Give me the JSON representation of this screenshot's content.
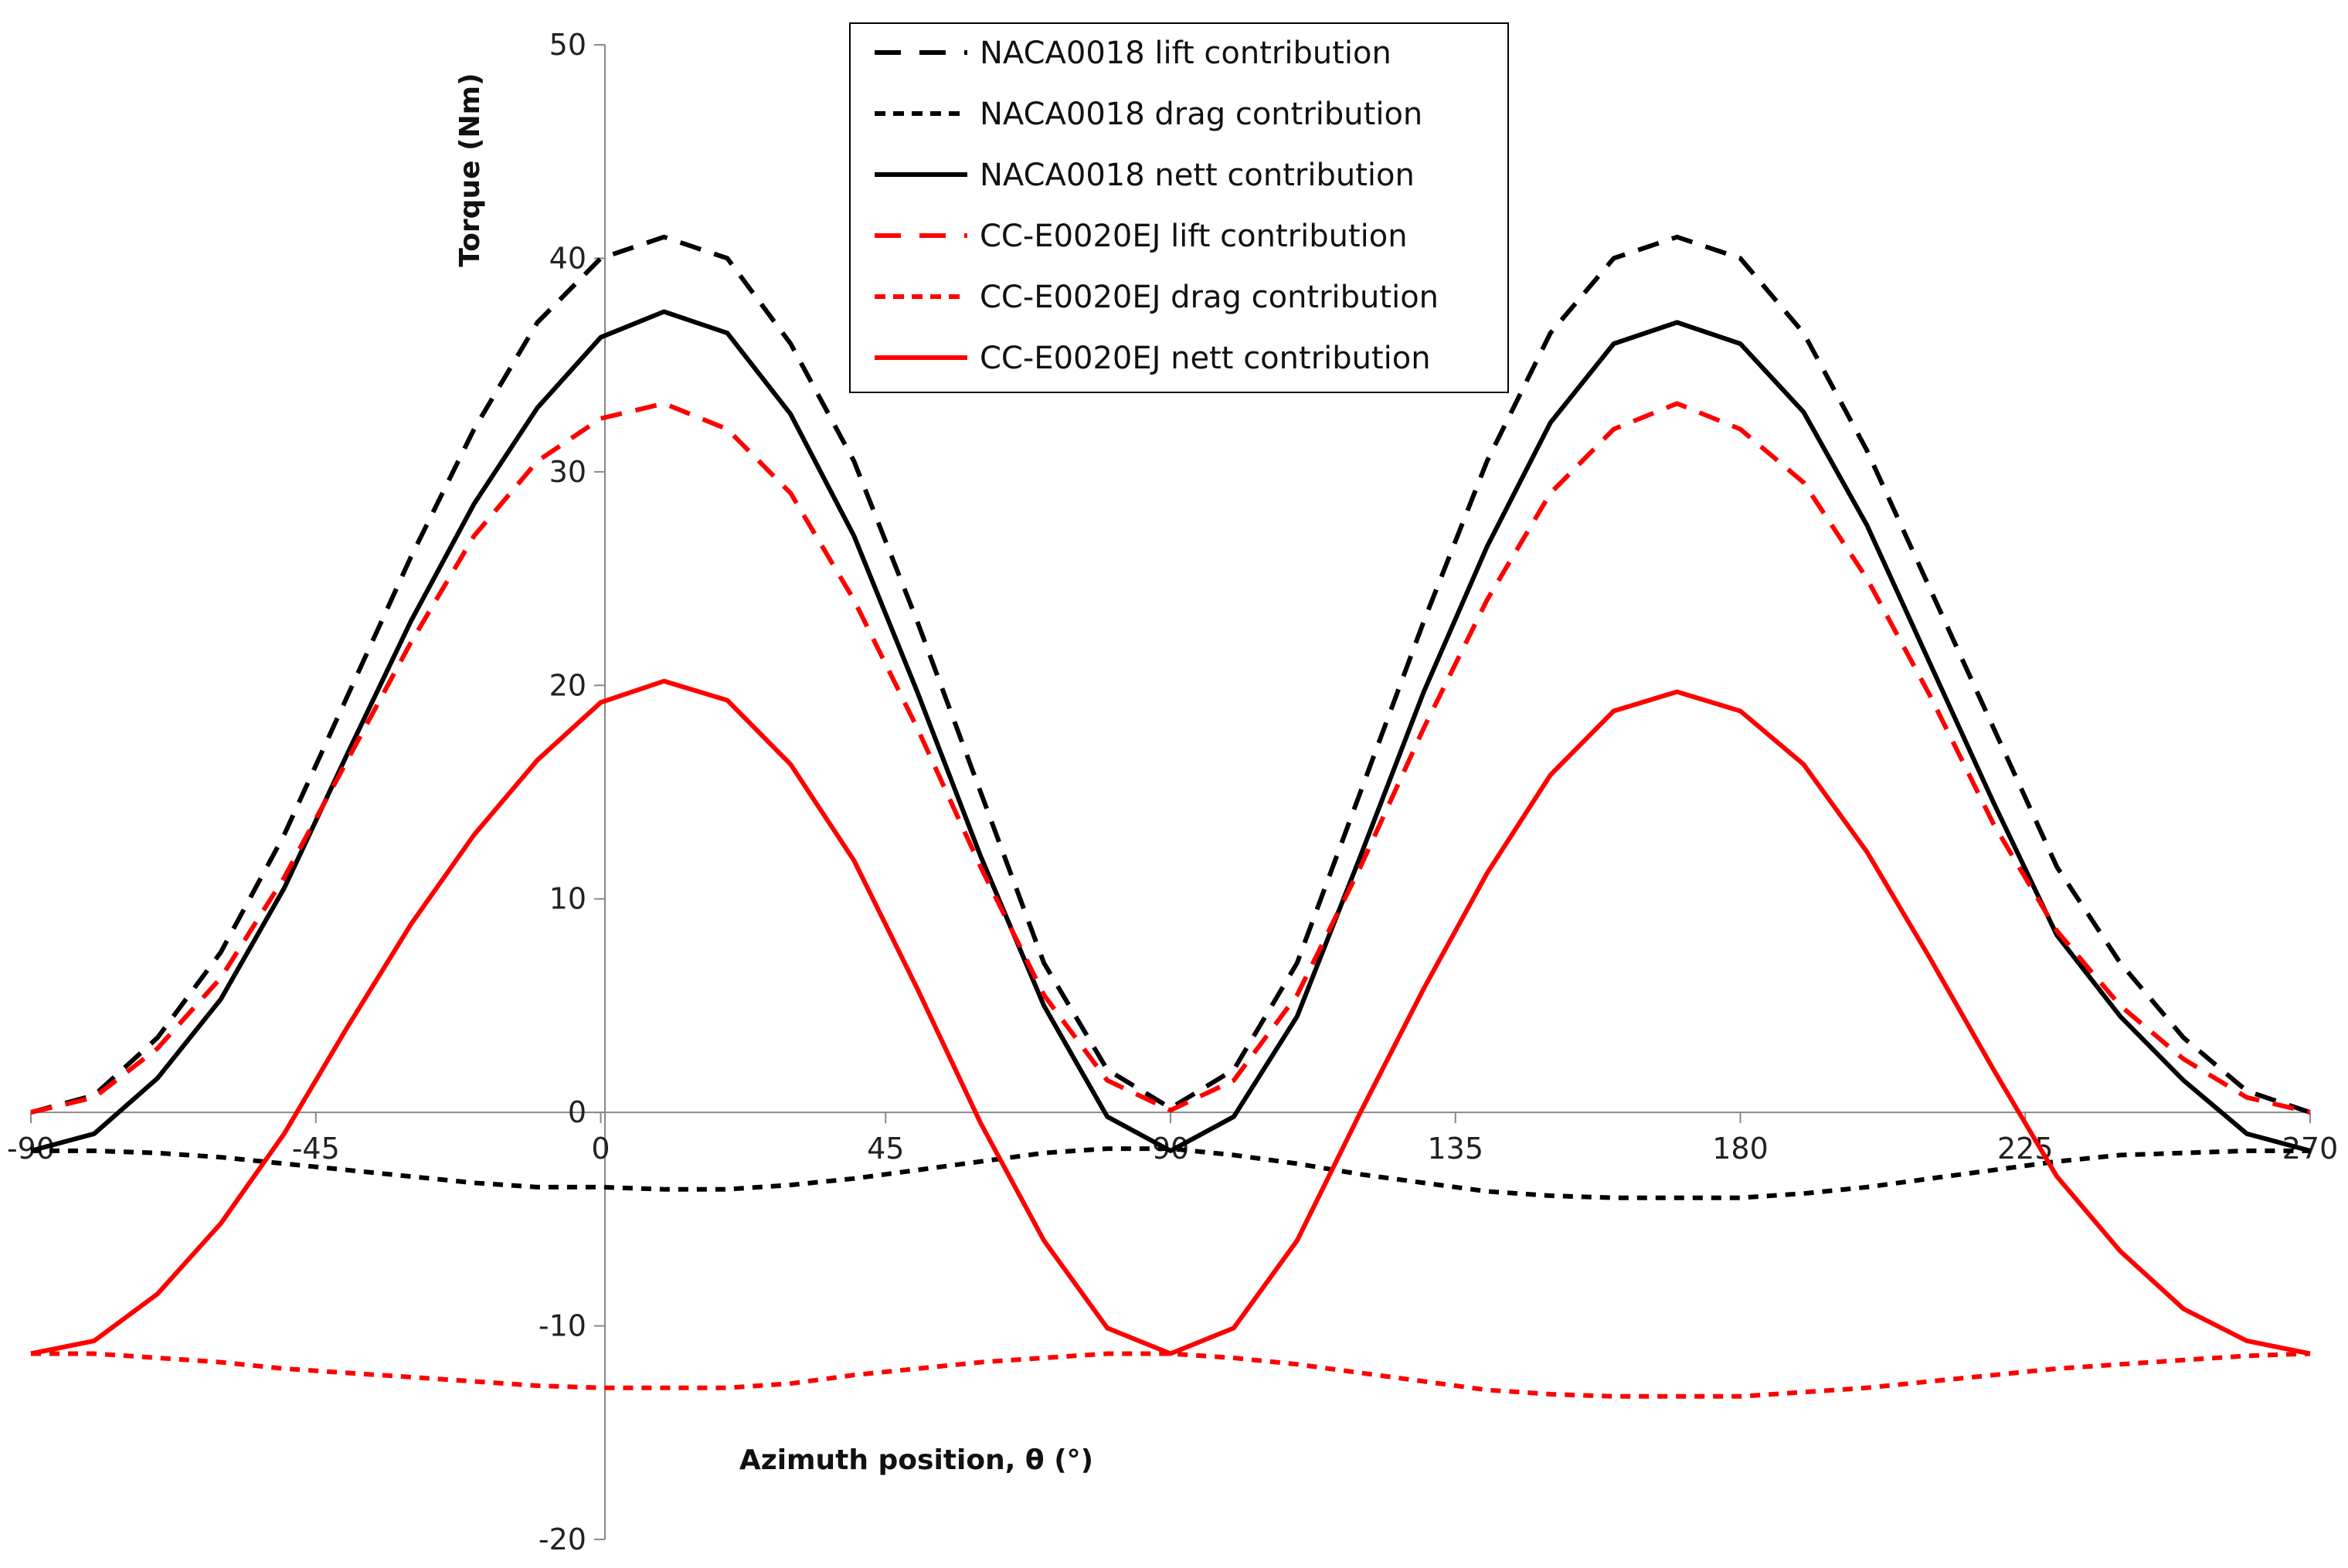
{
  "chart_data": {
    "type": "line",
    "title": "",
    "xlabel": "Azimuth position, θ (°)",
    "ylabel": "Torque (Nm)",
    "xlim": [
      -90,
      270
    ],
    "ylim": [
      -20,
      50
    ],
    "xticks": [
      -90,
      -45,
      0,
      45,
      90,
      135,
      180,
      225,
      270
    ],
    "yticks": [
      -20,
      -10,
      0,
      10,
      20,
      30,
      40,
      50
    ],
    "xtick_labels": [
      "-90",
      "-45",
      "0",
      "45",
      "90",
      "135",
      "180",
      "225",
      "270"
    ],
    "ytick_labels": [
      "-20",
      "-10",
      "0",
      "10",
      "20",
      "30",
      "40",
      "50"
    ],
    "legend_position": "top-center",
    "x": [
      -90,
      -80,
      -70,
      -60,
      -50,
      -40,
      -30,
      -20,
      -10,
      0,
      10,
      20,
      30,
      40,
      50,
      60,
      70,
      80,
      90,
      100,
      110,
      120,
      130,
      140,
      150,
      160,
      170,
      180,
      190,
      200,
      210,
      220,
      230,
      240,
      250,
      260,
      270
    ],
    "series": [
      {
        "name": "NACA0018 lift contribution",
        "color": "#000000",
        "dash": "long",
        "values": [
          0,
          0.8,
          3.5,
          7.5,
          13,
          19.5,
          26,
          32,
          37,
          40,
          41,
          40,
          36,
          30.5,
          23,
          15,
          7,
          2,
          0.2,
          2,
          7,
          15,
          23,
          30.5,
          36.5,
          40,
          41,
          40,
          36.5,
          31,
          24.5,
          18,
          11.5,
          7,
          3.5,
          1,
          0
        ]
      },
      {
        "name": "NACA0018 drag contribution",
        "color": "#000000",
        "dash": "short",
        "values": [
          -1.8,
          -1.8,
          -1.9,
          -2.1,
          -2.4,
          -2.7,
          -3,
          -3.3,
          -3.5,
          -3.5,
          -3.6,
          -3.6,
          -3.4,
          -3.1,
          -2.7,
          -2.3,
          -1.9,
          -1.7,
          -1.7,
          -2,
          -2.4,
          -2.9,
          -3.3,
          -3.7,
          -3.9,
          -4,
          -4,
          -4,
          -3.8,
          -3.5,
          -3.1,
          -2.7,
          -2.3,
          -2,
          -1.9,
          -1.8,
          -1.8
        ]
      },
      {
        "name": "NACA0018 nett contribution",
        "color": "#000000",
        "dash": "solid",
        "values": [
          -1.8,
          -1,
          1.6,
          5.3,
          10.5,
          16.8,
          23,
          28.5,
          33,
          36.3,
          37.5,
          36.5,
          32.7,
          27,
          19.7,
          12,
          5,
          -0.2,
          -1.8,
          -0.2,
          4.5,
          12,
          19.7,
          26.5,
          32.3,
          36,
          37,
          36,
          32.8,
          27.5,
          21,
          14.5,
          8.3,
          4.5,
          1.5,
          -1,
          -1.8
        ]
      },
      {
        "name": "CC-E0020EJ  lift contribution",
        "color": "#ff0000",
        "dash": "long",
        "values": [
          0,
          0.7,
          3,
          6.3,
          11,
          16.5,
          22,
          27,
          30.5,
          32.5,
          33.2,
          32,
          29,
          24,
          18,
          11.5,
          5.5,
          1.5,
          0.1,
          1.5,
          5.5,
          11.5,
          18,
          24,
          29,
          32,
          33.2,
          32,
          29.5,
          25,
          19.5,
          13.5,
          8.5,
          5,
          2.5,
          0.7,
          0
        ]
      },
      {
        "name": "CC-E0020EJ drag contribution",
        "color": "#ff0000",
        "dash": "short",
        "values": [
          -11.3,
          -11.3,
          -11.5,
          -11.7,
          -12,
          -12.2,
          -12.4,
          -12.6,
          -12.8,
          -12.9,
          -12.9,
          -12.9,
          -12.7,
          -12.3,
          -12,
          -11.7,
          -11.5,
          -11.3,
          -11.3,
          -11.5,
          -11.8,
          -12.2,
          -12.6,
          -13,
          -13.2,
          -13.3,
          -13.3,
          -13.3,
          -13.1,
          -12.9,
          -12.6,
          -12.3,
          -12,
          -11.8,
          -11.6,
          -11.4,
          -11.3
        ]
      },
      {
        "name": "CC-E0020EJ nett contribution",
        "color": "#ff0000",
        "dash": "solid",
        "values": [
          -11.3,
          -10.7,
          -8.5,
          -5.2,
          -1,
          4,
          8.8,
          13,
          16.5,
          19.2,
          20.2,
          19.3,
          16.3,
          11.8,
          5.8,
          -0.5,
          -6,
          -10.1,
          -11.3,
          -10.1,
          -6,
          0,
          5.8,
          11.2,
          15.8,
          18.8,
          19.7,
          18.8,
          16.3,
          12.2,
          7.2,
          2,
          -3,
          -6.5,
          -9.2,
          -10.7,
          -11.3
        ]
      }
    ]
  }
}
